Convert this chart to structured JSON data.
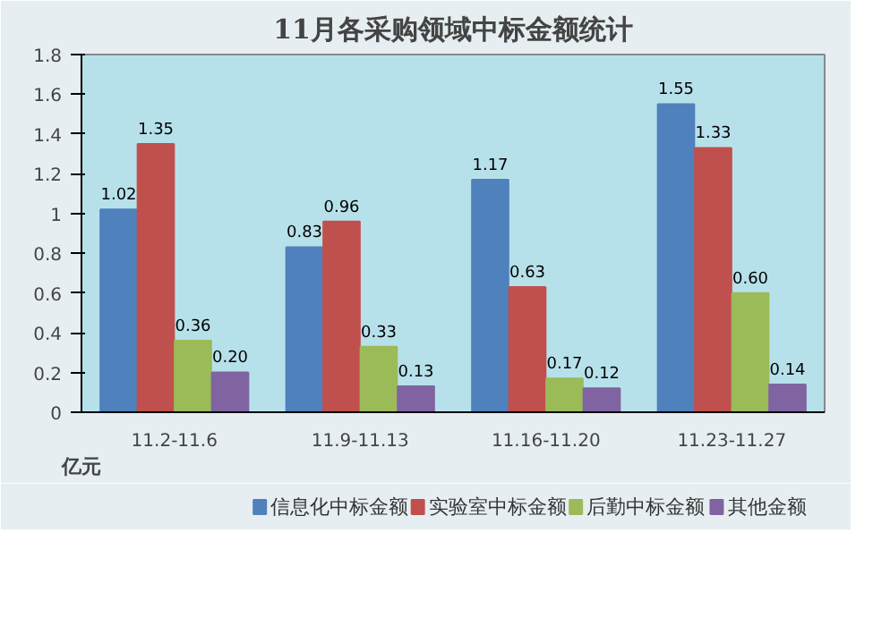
{
  "chart_data": {
    "type": "bar",
    "title": "11月各采购领域中标金额统计",
    "ylabel": "亿元",
    "categories": [
      "11.2-11.6",
      "11.9-11.13",
      "11.16-11.20",
      "11.23-11.27"
    ],
    "series": [
      {
        "name": "信息化中标金额",
        "color": "#4f81bd",
        "values": [
          1.02,
          0.83,
          1.17,
          1.55
        ]
      },
      {
        "name": "实验室中标金额",
        "color": "#c0504d",
        "values": [
          1.35,
          0.96,
          0.63,
          1.33
        ]
      },
      {
        "name": "后勤中标金额",
        "color": "#9bbb59",
        "values": [
          0.36,
          0.33,
          0.17,
          0.6
        ]
      },
      {
        "name": "其他金额",
        "color": "#8064a2",
        "values": [
          0.2,
          0.13,
          0.12,
          0.14
        ]
      }
    ],
    "value_labels": [
      [
        "1.02",
        "0.83",
        "1.17",
        "1.55"
      ],
      [
        "1.35",
        "0.96",
        "0.63",
        "1.33"
      ],
      [
        "0.36",
        "0.33",
        "0.17",
        "0.60"
      ],
      [
        "0.20",
        "0.13",
        "0.12",
        "0.14"
      ]
    ],
    "ylim": [
      0,
      1.8
    ],
    "yticks": [
      0,
      0.2,
      0.4,
      0.6,
      0.8,
      1,
      1.2,
      1.4,
      1.6,
      1.8
    ],
    "grid": false,
    "legend": "bottom"
  }
}
